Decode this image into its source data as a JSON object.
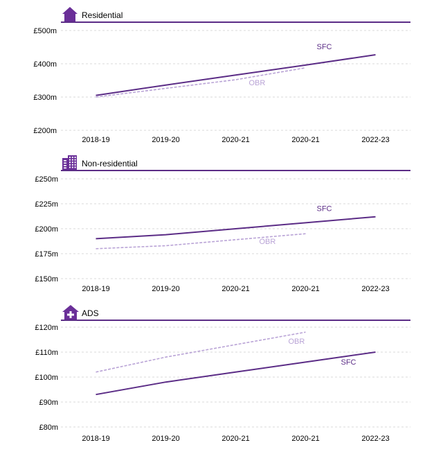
{
  "colors": {
    "sfc": "#5b2c86",
    "obr": "#b9a3d6",
    "grid": "#d9d9d9",
    "header_rule": "#5b2c86",
    "icon": "#6a2f98"
  },
  "chart_data": [
    {
      "type": "line",
      "title": "Residential",
      "icon": "house-icon",
      "categories": [
        "2018-19",
        "2019-20",
        "2020-21",
        "2020-21",
        "2022-23"
      ],
      "y_ticks": [
        "£200m",
        "£300m",
        "£400m",
        "£500m"
      ],
      "ylim": [
        200,
        500
      ],
      "grid": true,
      "series": [
        {
          "name": "SFC",
          "style": "solid",
          "values": [
            305,
            336,
            366,
            396,
            427
          ]
        },
        {
          "name": "OBR",
          "style": "dashed",
          "values": [
            300,
            326,
            352,
            388,
            null
          ]
        }
      ]
    },
    {
      "type": "line",
      "title": "Non-residential",
      "icon": "office-building-icon",
      "categories": [
        "2018-19",
        "2019-20",
        "2020-21",
        "2020-21",
        "2022-23"
      ],
      "y_ticks": [
        "£150m",
        "£175m",
        "£200m",
        "£225m",
        "£250m"
      ],
      "ylim": [
        150,
        250
      ],
      "grid": true,
      "series": [
        {
          "name": "SFC",
          "style": "solid",
          "values": [
            190,
            194,
            200,
            206,
            212
          ]
        },
        {
          "name": "OBR",
          "style": "dashed",
          "values": [
            180,
            183,
            189,
            195,
            null
          ]
        }
      ]
    },
    {
      "type": "line",
      "title": "ADS",
      "icon": "house-plus-icon",
      "categories": [
        "2018-19",
        "2019-20",
        "2020-21",
        "2020-21",
        "2022-23"
      ],
      "y_ticks": [
        "£80m",
        "£90m",
        "£100m",
        "£110m",
        "£120m"
      ],
      "ylim": [
        80,
        120
      ],
      "grid": true,
      "series": [
        {
          "name": "SFC",
          "style": "solid",
          "values": [
            93,
            98,
            102,
            106,
            110
          ]
        },
        {
          "name": "OBR",
          "style": "dashed",
          "values": [
            102,
            108,
            113,
            118,
            null
          ]
        }
      ]
    }
  ]
}
